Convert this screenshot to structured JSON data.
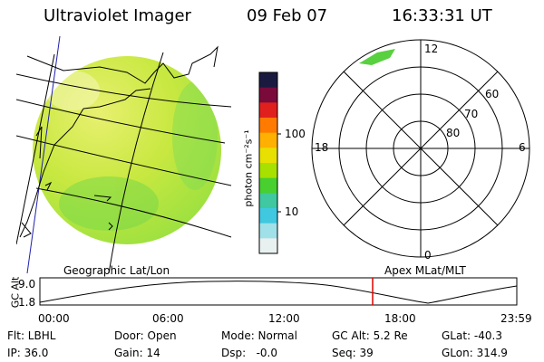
{
  "header": {
    "instrument": "Ultraviolet Imager",
    "date": "09 Feb 07",
    "time": "16:33:31 UT"
  },
  "colorbar": {
    "unit_label": "photon cm⁻²s⁻¹",
    "ticks": [
      "100",
      "10"
    ],
    "colors": [
      "#1a1a40",
      "#7a0a3a",
      "#e0201c",
      "#ff7a00",
      "#ffb000",
      "#e8e000",
      "#a8e000",
      "#48d030",
      "#40c8a0",
      "#40c8e0",
      "#a0e0e8",
      "#e8f0f0"
    ]
  },
  "polar": {
    "lat_labels": [
      "60",
      "70",
      "80"
    ],
    "mlt_labels": {
      "top": "12",
      "left": "18",
      "right": "6",
      "bottom": "0"
    }
  },
  "labels": {
    "left_panel": "Geographic Lat/Lon",
    "right_panel": "Apex MLat/MLT"
  },
  "orbit_plot": {
    "y_axis_label": "GC Alt",
    "y_ticks": [
      "9.0",
      "1.8"
    ],
    "x_ticks": [
      "00:00",
      "06:00",
      "12:00",
      "18:00",
      "23:59"
    ],
    "current_time_color": "#e00000"
  },
  "info": {
    "flt": "Flt: LBHL",
    "ip": "IP: 36.0",
    "door": "Door: Open",
    "gain": "Gain: 14",
    "mode": "Mode: Normal",
    "dsp": "Dsp:   -0.0",
    "gc_alt": "GC Alt: 5.2 Re",
    "seq": "Seq: 39",
    "glat": "GLat: -40.3",
    "glon": "GLon: 314.9"
  }
}
